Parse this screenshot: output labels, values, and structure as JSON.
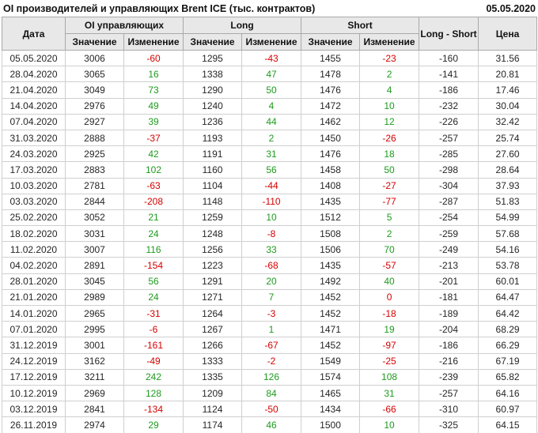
{
  "title": "OI производителей и управляющих Brent ICE (тыс. контрактов)",
  "report_date": "05.05.2020",
  "theme": {
    "positive": "#1e9b1e",
    "negative": "#d60000",
    "header_bg": "#e8e8e8",
    "header_border": "#a9a9a9",
    "cell_border": "#cfcfcf"
  },
  "table": {
    "headers": {
      "date": "Дата",
      "oi_group": "OI управляющих",
      "long_group": "Long",
      "short_group": "Short",
      "long_short": "Long - Short",
      "price": "Цена",
      "value": "Значение",
      "change": "Изменение"
    },
    "columns": [
      "date",
      "oi_value",
      "oi_change",
      "long_value",
      "long_change",
      "short_value",
      "short_change",
      "long_short",
      "price"
    ],
    "change_column_indexes": [
      2,
      4,
      6
    ],
    "rows": [
      [
        "05.05.2020",
        "3006",
        "-60",
        "1295",
        "-43",
        "1455",
        "-23",
        "-160",
        "31.56"
      ],
      [
        "28.04.2020",
        "3065",
        "16",
        "1338",
        "47",
        "1478",
        "2",
        "-141",
        "20.81"
      ],
      [
        "21.04.2020",
        "3049",
        "73",
        "1290",
        "50",
        "1476",
        "4",
        "-186",
        "17.46"
      ],
      [
        "14.04.2020",
        "2976",
        "49",
        "1240",
        "4",
        "1472",
        "10",
        "-232",
        "30.04"
      ],
      [
        "07.04.2020",
        "2927",
        "39",
        "1236",
        "44",
        "1462",
        "12",
        "-226",
        "32.42"
      ],
      [
        "31.03.2020",
        "2888",
        "-37",
        "1193",
        "2",
        "1450",
        "-26",
        "-257",
        "25.74"
      ],
      [
        "24.03.2020",
        "2925",
        "42",
        "1191",
        "31",
        "1476",
        "18",
        "-285",
        "27.60"
      ],
      [
        "17.03.2020",
        "2883",
        "102",
        "1160",
        "56",
        "1458",
        "50",
        "-298",
        "28.64"
      ],
      [
        "10.03.2020",
        "2781",
        "-63",
        "1104",
        "-44",
        "1408",
        "-27",
        "-304",
        "37.93"
      ],
      [
        "03.03.2020",
        "2844",
        "-208",
        "1148",
        "-110",
        "1435",
        "-77",
        "-287",
        "51.83"
      ],
      [
        "25.02.2020",
        "3052",
        "21",
        "1259",
        "10",
        "1512",
        "5",
        "-254",
        "54.99"
      ],
      [
        "18.02.2020",
        "3031",
        "24",
        "1248",
        "-8",
        "1508",
        "2",
        "-259",
        "57.68"
      ],
      [
        "11.02.2020",
        "3007",
        "116",
        "1256",
        "33",
        "1506",
        "70",
        "-249",
        "54.16"
      ],
      [
        "04.02.2020",
        "2891",
        "-154",
        "1223",
        "-68",
        "1435",
        "-57",
        "-213",
        "53.78"
      ],
      [
        "28.01.2020",
        "3045",
        "56",
        "1291",
        "20",
        "1492",
        "40",
        "-201",
        "60.01"
      ],
      [
        "21.01.2020",
        "2989",
        "24",
        "1271",
        "7",
        "1452",
        "0",
        "-181",
        "64.47"
      ],
      [
        "14.01.2020",
        "2965",
        "-31",
        "1264",
        "-3",
        "1452",
        "-18",
        "-189",
        "64.42"
      ],
      [
        "07.01.2020",
        "2995",
        "-6",
        "1267",
        "1",
        "1471",
        "19",
        "-204",
        "68.29"
      ],
      [
        "31.12.2019",
        "3001",
        "-161",
        "1266",
        "-67",
        "1452",
        "-97",
        "-186",
        "66.29"
      ],
      [
        "24.12.2019",
        "3162",
        "-49",
        "1333",
        "-2",
        "1549",
        "-25",
        "-216",
        "67.19"
      ],
      [
        "17.12.2019",
        "3211",
        "242",
        "1335",
        "126",
        "1574",
        "108",
        "-239",
        "65.82"
      ],
      [
        "10.12.2019",
        "2969",
        "128",
        "1209",
        "84",
        "1465",
        "31",
        "-257",
        "64.16"
      ],
      [
        "03.12.2019",
        "2841",
        "-134",
        "1124",
        "-50",
        "1434",
        "-66",
        "-310",
        "60.97"
      ],
      [
        "26.11.2019",
        "2974",
        "29",
        "1174",
        "46",
        "1500",
        "10",
        "-325",
        "64.15"
      ]
    ]
  }
}
